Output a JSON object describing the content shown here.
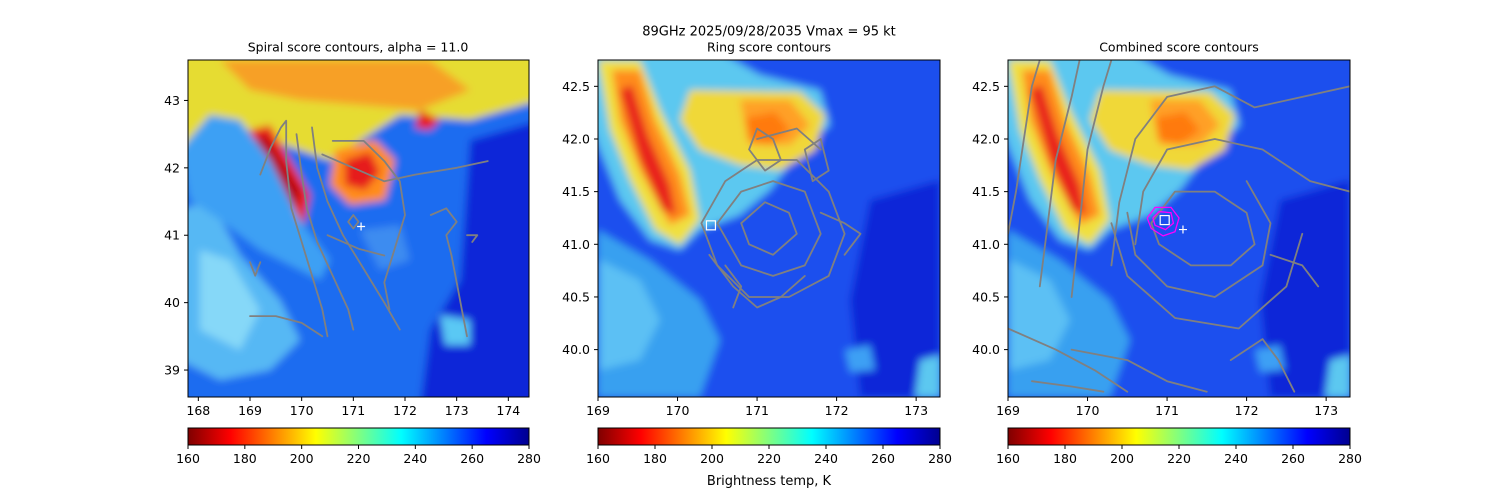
{
  "figure": {
    "suptitle_line1": "89GHz  2025/09/28/2035    Vmax = 95 kt",
    "colorbar_label": "Brightness temp, K",
    "colormap": "jet_r",
    "colormap_stops": [
      "#7f0000",
      "#ff0000",
      "#ff8000",
      "#ffff00",
      "#80ff80",
      "#00ffff",
      "#0080ff",
      "#0000ff",
      "#00008f"
    ],
    "contour_color": "#808080",
    "center_marker_color": "#ffffff",
    "score_peak_marker_color": "#ffffff",
    "max_contour_color": "#ff00ff"
  },
  "chart_data": [
    {
      "type": "heatmap",
      "title": "Spiral score contours, alpha = 11.0",
      "xlabel": "",
      "ylabel": "",
      "xlim": [
        167.8,
        174.4
      ],
      "ylim": [
        38.6,
        43.6
      ],
      "xticks": [
        168,
        169,
        170,
        171,
        172,
        173,
        174
      ],
      "yticks": [
        39,
        40,
        41,
        42,
        43
      ],
      "colorbar": {
        "min": 160,
        "max": 280,
        "ticks": [
          160,
          180,
          200,
          220,
          240,
          260,
          280
        ]
      },
      "center_marker": {
        "lon": 171.15,
        "lat": 41.13
      },
      "score_peak_marker": null,
      "contours": [
        [
          [
            169.2,
            41.9
          ],
          [
            169.4,
            42.3
          ],
          [
            169.6,
            42.6
          ],
          [
            169.7,
            42.7
          ],
          [
            169.7,
            42.1
          ],
          [
            169.8,
            41.4
          ],
          [
            170.0,
            40.9
          ],
          [
            170.2,
            40.4
          ],
          [
            170.4,
            39.9
          ],
          [
            170.5,
            39.5
          ]
        ],
        [
          [
            169.9,
            42.5
          ],
          [
            170.0,
            41.9
          ],
          [
            170.1,
            41.4
          ],
          [
            170.3,
            40.9
          ],
          [
            170.6,
            40.4
          ],
          [
            170.9,
            39.9
          ],
          [
            171.0,
            39.6
          ]
        ],
        [
          [
            170.2,
            42.6
          ],
          [
            170.3,
            42.0
          ],
          [
            170.5,
            41.5
          ],
          [
            170.8,
            41.0
          ],
          [
            171.2,
            40.5
          ],
          [
            171.6,
            40.0
          ],
          [
            171.9,
            39.6
          ]
        ],
        [
          [
            170.6,
            42.4
          ],
          [
            171.2,
            42.4
          ],
          [
            171.6,
            42.1
          ],
          [
            171.9,
            41.8
          ],
          [
            172.0,
            41.3
          ],
          [
            171.8,
            40.8
          ],
          [
            171.6,
            40.3
          ],
          [
            171.7,
            39.9
          ]
        ],
        [
          [
            170.4,
            42.2
          ],
          [
            171.0,
            42.0
          ],
          [
            171.6,
            41.8
          ],
          [
            172.2,
            41.9
          ],
          [
            173.0,
            42.0
          ],
          [
            173.6,
            42.1
          ]
        ],
        [
          [
            169.2,
            40.6
          ],
          [
            169.1,
            40.4
          ],
          [
            169.0,
            40.6
          ]
        ],
        [
          [
            169.0,
            39.8
          ],
          [
            169.5,
            39.8
          ],
          [
            170.0,
            39.7
          ],
          [
            170.4,
            39.5
          ]
        ],
        [
          [
            170.9,
            41.2
          ],
          [
            171.0,
            41.3
          ],
          [
            171.1,
            41.2
          ],
          [
            171.0,
            41.1
          ],
          [
            170.9,
            41.2
          ]
        ],
        [
          [
            172.5,
            41.3
          ],
          [
            172.8,
            41.4
          ],
          [
            173.0,
            41.2
          ],
          [
            172.8,
            41.0
          ],
          [
            172.9,
            40.7
          ],
          [
            173.0,
            40.3
          ],
          [
            173.1,
            39.9
          ],
          [
            173.2,
            39.5
          ]
        ],
        [
          [
            173.2,
            41.0
          ],
          [
            173.4,
            41.0
          ],
          [
            173.3,
            40.9
          ]
        ],
        [
          [
            170.5,
            41.0
          ],
          [
            171.1,
            40.8
          ],
          [
            171.6,
            40.7
          ]
        ]
      ],
      "max_contours": []
    },
    {
      "type": "heatmap",
      "title": "Ring score contours",
      "xlabel": "",
      "ylabel": "",
      "xlim": [
        169.0,
        173.3
      ],
      "ylim": [
        39.55,
        42.75
      ],
      "xticks": [
        169,
        170,
        171,
        172,
        173
      ],
      "yticks": [
        40.0,
        40.5,
        41.0,
        41.5,
        42.0,
        42.5
      ],
      "colorbar": {
        "min": 160,
        "max": 280,
        "ticks": [
          160,
          180,
          200,
          220,
          240,
          260,
          280
        ]
      },
      "center_marker": null,
      "score_peak_marker": {
        "lon": 170.42,
        "lat": 41.18
      },
      "contours": [
        [
          [
            170.3,
            41.2
          ],
          [
            170.6,
            41.6
          ],
          [
            171.0,
            41.8
          ],
          [
            171.5,
            41.8
          ],
          [
            171.9,
            41.5
          ],
          [
            172.1,
            41.1
          ],
          [
            171.9,
            40.7
          ],
          [
            171.4,
            40.5
          ],
          [
            170.9,
            40.5
          ],
          [
            170.5,
            40.8
          ],
          [
            170.3,
            41.2
          ]
        ],
        [
          [
            170.5,
            41.2
          ],
          [
            170.8,
            41.5
          ],
          [
            171.2,
            41.6
          ],
          [
            171.6,
            41.5
          ],
          [
            171.8,
            41.1
          ],
          [
            171.6,
            40.8
          ],
          [
            171.2,
            40.7
          ],
          [
            170.8,
            40.8
          ],
          [
            170.5,
            41.2
          ]
        ],
        [
          [
            170.8,
            41.2
          ],
          [
            171.1,
            41.4
          ],
          [
            171.4,
            41.3
          ],
          [
            171.5,
            41.1
          ],
          [
            171.2,
            40.9
          ],
          [
            170.9,
            41.0
          ],
          [
            170.8,
            41.2
          ]
        ],
        [
          [
            170.9,
            41.9
          ],
          [
            171.0,
            42.1
          ],
          [
            171.2,
            42.0
          ],
          [
            171.3,
            41.8
          ],
          [
            171.1,
            41.7
          ],
          [
            170.9,
            41.9
          ]
        ],
        [
          [
            171.6,
            41.9
          ],
          [
            171.8,
            42.0
          ],
          [
            171.9,
            41.7
          ],
          [
            171.7,
            41.6
          ],
          [
            171.6,
            41.9
          ]
        ],
        [
          [
            170.4,
            40.9
          ],
          [
            170.7,
            40.6
          ],
          [
            171.0,
            40.4
          ],
          [
            171.3,
            40.5
          ],
          [
            171.6,
            40.7
          ]
        ],
        [
          [
            171.8,
            41.3
          ],
          [
            172.1,
            41.2
          ],
          [
            172.3,
            41.1
          ],
          [
            172.1,
            40.9
          ]
        ],
        [
          [
            170.6,
            40.8
          ],
          [
            170.8,
            40.6
          ],
          [
            170.7,
            40.4
          ]
        ],
        [
          [
            171.0,
            42.0
          ],
          [
            171.5,
            42.1
          ],
          [
            171.8,
            41.9
          ]
        ]
      ],
      "max_contours": []
    },
    {
      "type": "heatmap",
      "title": "Combined score contours",
      "xlabel": "",
      "ylabel": "",
      "xlim": [
        169.0,
        173.3
      ],
      "ylim": [
        39.55,
        42.75
      ],
      "xticks": [
        169,
        170,
        171,
        172,
        173
      ],
      "yticks": [
        40.0,
        40.5,
        41.0,
        41.5,
        42.0,
        42.5
      ],
      "colorbar": {
        "min": 160,
        "max": 280,
        "ticks": [
          160,
          180,
          200,
          220,
          240,
          260,
          280
        ]
      },
      "center_marker": {
        "lon": 171.2,
        "lat": 41.14
      },
      "score_peak_marker": {
        "lon": 170.97,
        "lat": 41.23
      },
      "contours": [
        [
          [
            169.0,
            41.1
          ],
          [
            169.1,
            41.5
          ],
          [
            169.2,
            42.0
          ],
          [
            169.3,
            42.5
          ],
          [
            169.4,
            42.75
          ]
        ],
        [
          [
            169.4,
            40.6
          ],
          [
            169.5,
            41.2
          ],
          [
            169.6,
            41.8
          ],
          [
            169.8,
            42.4
          ],
          [
            169.9,
            42.75
          ]
        ],
        [
          [
            169.8,
            40.5
          ],
          [
            169.9,
            41.2
          ],
          [
            170.0,
            41.9
          ],
          [
            170.2,
            42.5
          ],
          [
            170.3,
            42.75
          ]
        ],
        [
          [
            170.3,
            40.8
          ],
          [
            170.4,
            41.4
          ],
          [
            170.6,
            42.0
          ],
          [
            171.0,
            42.4
          ],
          [
            171.6,
            42.5
          ],
          [
            172.1,
            42.3
          ],
          [
            172.7,
            42.4
          ],
          [
            173.3,
            42.5
          ]
        ],
        [
          [
            170.6,
            41.0
          ],
          [
            170.7,
            41.5
          ],
          [
            171.0,
            41.9
          ],
          [
            171.6,
            42.0
          ],
          [
            172.2,
            41.9
          ],
          [
            172.8,
            41.6
          ],
          [
            173.3,
            41.5
          ]
        ],
        [
          [
            170.8,
            41.2
          ],
          [
            171.1,
            41.5
          ],
          [
            171.6,
            41.5
          ],
          [
            172.0,
            41.3
          ],
          [
            172.1,
            41.0
          ],
          [
            171.8,
            40.8
          ],
          [
            171.3,
            40.8
          ],
          [
            170.9,
            41.0
          ],
          [
            170.8,
            41.2
          ]
        ],
        [
          [
            170.5,
            41.3
          ],
          [
            170.6,
            40.9
          ],
          [
            171.0,
            40.6
          ],
          [
            171.6,
            40.5
          ],
          [
            172.2,
            40.8
          ],
          [
            172.3,
            41.2
          ],
          [
            172.0,
            41.6
          ]
        ],
        [
          [
            170.3,
            41.2
          ],
          [
            170.5,
            40.7
          ],
          [
            171.1,
            40.3
          ],
          [
            171.9,
            40.2
          ],
          [
            172.5,
            40.6
          ],
          [
            172.7,
            41.1
          ]
        ],
        [
          [
            169.8,
            40.0
          ],
          [
            170.5,
            39.9
          ],
          [
            171.0,
            39.7
          ],
          [
            171.5,
            39.6
          ]
        ],
        [
          [
            169.0,
            40.2
          ],
          [
            169.6,
            40.0
          ],
          [
            170.1,
            39.8
          ],
          [
            170.5,
            39.6
          ]
        ],
        [
          [
            169.3,
            39.7
          ],
          [
            169.8,
            39.65
          ],
          [
            170.2,
            39.6
          ]
        ],
        [
          [
            171.8,
            39.9
          ],
          [
            172.2,
            40.1
          ],
          [
            172.4,
            39.9
          ],
          [
            172.6,
            39.6
          ]
        ],
        [
          [
            172.3,
            40.9
          ],
          [
            172.7,
            40.8
          ],
          [
            172.9,
            40.6
          ]
        ]
      ],
      "max_contours": [
        [
          [
            170.75,
            41.25
          ],
          [
            170.85,
            41.35
          ],
          [
            171.05,
            41.35
          ],
          [
            171.15,
            41.25
          ],
          [
            171.1,
            41.12
          ],
          [
            170.95,
            41.08
          ],
          [
            170.8,
            41.15
          ],
          [
            170.75,
            41.25
          ]
        ],
        [
          [
            170.82,
            41.25
          ],
          [
            170.9,
            41.31
          ],
          [
            171.05,
            41.3
          ],
          [
            171.08,
            41.2
          ],
          [
            170.98,
            41.14
          ],
          [
            170.85,
            41.18
          ],
          [
            170.82,
            41.25
          ]
        ]
      ]
    }
  ]
}
